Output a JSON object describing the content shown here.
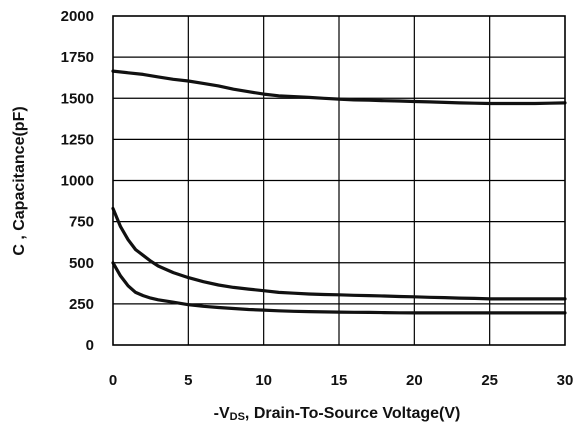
{
  "chart_data": {
    "type": "line",
    "title": "",
    "xlabel": {
      "prefix": "-V",
      "subscript": "DS",
      "suffix": ", Drain-To-Source Voltage(V)"
    },
    "ylabel": "C , Capacitance(pF)",
    "xlim": [
      0,
      30
    ],
    "ylim": [
      0,
      2000
    ],
    "x_ticks": [
      0,
      5,
      10,
      15,
      20,
      25,
      30
    ],
    "y_ticks": [
      0,
      250,
      500,
      750,
      1000,
      1250,
      1500,
      1750,
      2000
    ],
    "grid": true,
    "legend": "none",
    "line_color": "#111111",
    "series": [
      {
        "x": [
          0,
          1,
          2,
          3,
          4,
          5,
          6,
          7,
          8,
          9,
          10,
          11,
          12,
          13,
          14,
          15,
          16,
          17,
          18,
          19,
          20,
          21,
          22,
          23,
          24,
          25,
          26,
          27,
          28,
          29,
          30
        ],
        "values": [
          1665,
          1655,
          1645,
          1630,
          1615,
          1605,
          1590,
          1575,
          1555,
          1540,
          1525,
          1515,
          1510,
          1505,
          1500,
          1495,
          1490,
          1488,
          1485,
          1483,
          1480,
          1478,
          1475,
          1472,
          1470,
          1468,
          1468,
          1468,
          1468,
          1470,
          1472
        ]
      },
      {
        "x": [
          0,
          0.5,
          1,
          1.5,
          2,
          2.5,
          3,
          4,
          5,
          6,
          7,
          8,
          9,
          10,
          11,
          12,
          13,
          14,
          15,
          16,
          17,
          18,
          19,
          20,
          21,
          22,
          23,
          24,
          25,
          26,
          27,
          28,
          29,
          30
        ],
        "values": [
          830,
          720,
          640,
          580,
          545,
          510,
          480,
          440,
          410,
          385,
          365,
          350,
          340,
          330,
          320,
          315,
          310,
          307,
          305,
          302,
          300,
          298,
          295,
          293,
          290,
          288,
          285,
          283,
          280,
          280,
          280,
          280,
          280,
          280
        ]
      },
      {
        "x": [
          0,
          0.5,
          1,
          1.5,
          2,
          2.5,
          3,
          4,
          5,
          6,
          7,
          8,
          9,
          10,
          11,
          12,
          13,
          14,
          15,
          16,
          17,
          18,
          19,
          20,
          21,
          22,
          23,
          24,
          25,
          26,
          27,
          28,
          29,
          30
        ],
        "values": [
          500,
          420,
          360,
          320,
          300,
          285,
          275,
          260,
          245,
          235,
          228,
          222,
          216,
          212,
          208,
          205,
          203,
          201,
          200,
          199,
          198,
          197,
          196,
          195,
          195,
          195,
          195,
          195,
          195,
          195,
          195,
          195,
          195,
          195
        ]
      }
    ]
  }
}
